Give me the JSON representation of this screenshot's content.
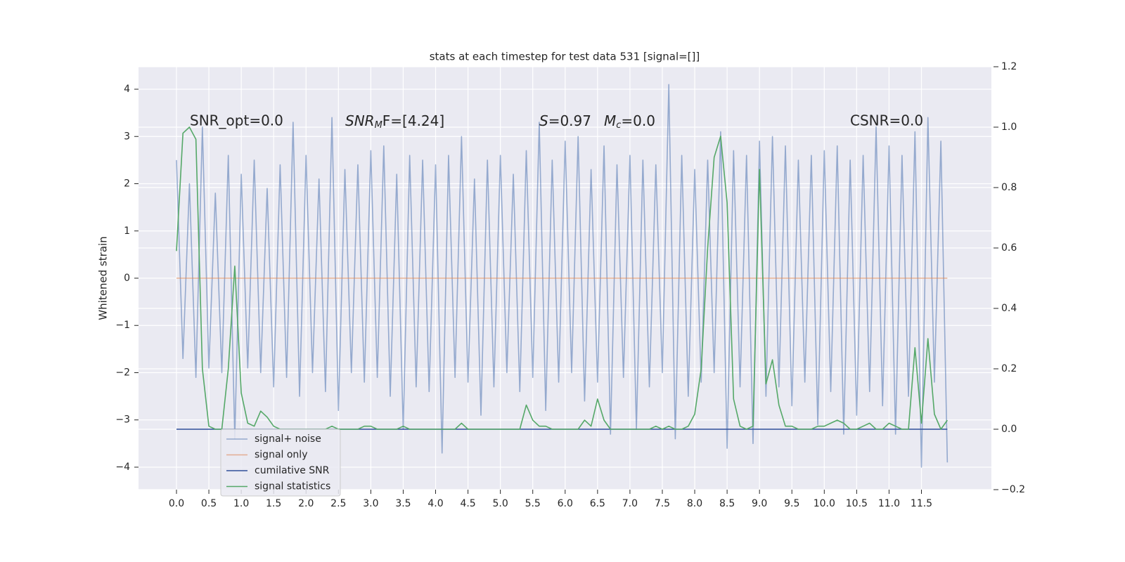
{
  "chart_data": {
    "type": "line",
    "title": "stats at each timestep for test data 531 [signal=[]]",
    "ylabel": "Whitened strain",
    "annotations": [
      "SNR_opt=0.0",
      [
        "SNR",
        "M",
        "F=[4.24]"
      ],
      [
        "S",
        "=0.97"
      ],
      [
        "M",
        "c",
        "=0.0"
      ],
      "CSNR=0.0"
    ],
    "x": [
      0,
      0.1,
      0.2,
      0.3,
      0.4,
      0.5,
      0.6,
      0.7,
      0.8,
      0.9,
      1,
      1.1,
      1.2,
      1.3,
      1.4,
      1.5,
      1.6,
      1.7,
      1.8,
      1.9,
      2,
      2.1,
      2.2,
      2.3,
      2.4,
      2.5,
      2.6,
      2.7,
      2.8,
      2.9,
      3,
      3.1,
      3.2,
      3.3,
      3.4,
      3.5,
      3.6,
      3.7,
      3.8,
      3.9,
      4,
      4.1,
      4.2,
      4.3,
      4.4,
      4.5,
      4.6,
      4.7,
      4.8,
      4.9,
      5,
      5.1,
      5.2,
      5.3,
      5.4,
      5.5,
      5.6,
      5.7,
      5.8,
      5.9,
      6,
      6.1,
      6.2,
      6.3,
      6.4,
      6.5,
      6.6,
      6.7,
      6.8,
      6.9,
      7,
      7.1,
      7.2,
      7.3,
      7.4,
      7.5,
      7.6,
      7.7,
      7.8,
      7.9,
      8,
      8.1,
      8.2,
      8.3,
      8.4,
      8.5,
      8.6,
      8.7,
      8.8,
      8.9,
      9,
      9.1,
      9.2,
      9.3,
      9.4,
      9.5,
      9.6,
      9.7,
      9.8,
      9.9,
      10,
      10.1,
      10.2,
      10.3,
      10.4,
      10.5,
      10.6,
      10.7,
      10.8,
      10.9,
      11,
      11.1,
      11.2,
      11.3,
      11.4,
      11.5,
      11.6,
      11.7,
      11.8,
      11.9
    ],
    "series": [
      {
        "name": "signal+ noise",
        "color": "#4c72b0",
        "opacity": 0.55,
        "values": [
          2.5,
          -1.7,
          2.0,
          -2.1,
          3.2,
          -1.9,
          1.8,
          -2.0,
          2.6,
          -3.4,
          2.2,
          -1.9,
          2.5,
          -2.0,
          1.9,
          -2.3,
          2.4,
          -2.1,
          3.3,
          -2.5,
          2.6,
          -2.0,
          2.1,
          -2.4,
          3.4,
          -2.8,
          2.3,
          -2.0,
          2.4,
          -2.2,
          2.7,
          -2.1,
          2.8,
          -2.5,
          2.2,
          -3.2,
          2.6,
          -2.3,
          2.5,
          -2.4,
          2.4,
          -3.7,
          2.6,
          -2.1,
          3.0,
          -2.2,
          2.1,
          -2.9,
          2.5,
          -2.3,
          2.6,
          -2.0,
          2.2,
          -2.4,
          2.7,
          -2.1,
          3.3,
          -2.8,
          2.5,
          -2.2,
          2.9,
          -2.0,
          3.0,
          -2.6,
          2.3,
          -2.2,
          2.8,
          -3.3,
          2.4,
          -2.1,
          2.6,
          -3.2,
          2.5,
          -2.3,
          2.4,
          -2.0,
          4.1,
          -3.4,
          2.6,
          -2.5,
          2.3,
          -2.2,
          2.5,
          -2.0,
          3.1,
          -3.6,
          2.7,
          -2.3,
          2.6,
          -3.5,
          2.9,
          -2.5,
          3.0,
          -2.3,
          2.8,
          -2.7,
          2.5,
          -2.2,
          2.6,
          -3.1,
          2.7,
          -2.4,
          2.8,
          -3.3,
          2.5,
          -2.9,
          2.6,
          -2.4,
          3.2,
          -2.7,
          2.8,
          -3.3,
          2.6,
          -2.5,
          3.1,
          -4.0,
          3.4,
          -2.2,
          2.9,
          -3.9
        ]
      },
      {
        "name": "signal only",
        "color": "#dd8452",
        "opacity": 0.6,
        "x": [
          0,
          11.9
        ],
        "values": [
          0,
          0
        ]
      },
      {
        "name": "cumilative SNR",
        "color": "#2f4f9a",
        "opacity": 1,
        "x": [
          0,
          11.9
        ],
        "values": [
          0,
          0
        ],
        "axis": "y2"
      },
      {
        "name": "signal statistics",
        "color": "#55a868",
        "opacity": 1,
        "axis": "y2",
        "values": [
          0.59,
          0.98,
          1.0,
          0.96,
          0.2,
          0.01,
          0.0,
          0.0,
          0.2,
          0.54,
          0.12,
          0.02,
          0.01,
          0.06,
          0.04,
          0.01,
          0.0,
          0.0,
          0.0,
          0.0,
          0.0,
          0.0,
          0.0,
          0.0,
          0.01,
          0.0,
          0.0,
          0.0,
          0.0,
          0.01,
          0.01,
          0.0,
          0.0,
          0.0,
          0.0,
          0.01,
          0.0,
          0.0,
          0.0,
          0.0,
          0.0,
          0.0,
          0.0,
          0.0,
          0.02,
          0.0,
          0.0,
          0.0,
          0.0,
          0.0,
          0.0,
          0.0,
          0.0,
          0.0,
          0.08,
          0.03,
          0.01,
          0.01,
          0.0,
          0.0,
          0.0,
          0.0,
          0.0,
          0.03,
          0.01,
          0.1,
          0.03,
          0.0,
          0.0,
          0.0,
          0.0,
          0.0,
          0.0,
          0.0,
          0.01,
          0.0,
          0.01,
          0.0,
          0.0,
          0.01,
          0.05,
          0.2,
          0.6,
          0.9,
          0.97,
          0.75,
          0.1,
          0.01,
          0.0,
          0.01,
          0.86,
          0.15,
          0.23,
          0.08,
          0.01,
          0.01,
          0.0,
          0.0,
          0.0,
          0.01,
          0.01,
          0.02,
          0.03,
          0.02,
          0.0,
          0.0,
          0.01,
          0.02,
          0.0,
          0.0,
          0.02,
          0.01,
          0.0,
          0.0,
          0.27,
          0.02,
          0.3,
          0.05,
          0.0,
          0.03
        ]
      }
    ],
    "xlim": [
      -0.586,
      12.58
    ],
    "xticks": [
      {
        "value": 0,
        "label": "0.0"
      },
      0.5,
      {
        "value": 1,
        "label": "1.0"
      },
      1.5,
      {
        "value": 2,
        "label": "2.0"
      },
      2.5,
      {
        "value": 3,
        "label": "3.0"
      },
      3.5,
      {
        "value": 4,
        "label": "4.0"
      },
      4.5,
      {
        "value": 5,
        "label": "5.0"
      },
      5.5,
      {
        "value": 6,
        "label": "6.0"
      },
      6.5,
      {
        "value": 7,
        "label": "7.0"
      },
      7.5,
      {
        "value": 8,
        "label": "8.0"
      },
      8.5,
      {
        "value": 9,
        "label": "9.0"
      },
      9.5,
      {
        "value": 10,
        "label": "10.0"
      },
      10.5,
      {
        "value": 11,
        "label": "11.0"
      },
      11.5
    ],
    "ylim": [
      -4.476,
      4.476
    ],
    "yticks": [
      {
        "value": -4,
        "label": "−4"
      },
      {
        "value": -3,
        "label": "−3"
      },
      {
        "value": -2,
        "label": "−2"
      },
      {
        "value": -1,
        "label": "−1"
      },
      0,
      1,
      2,
      3,
      4
    ],
    "y2lim": [
      -0.2,
      1.2
    ],
    "y2ticks": [
      {
        "value": -0.2,
        "label": "−0.2"
      },
      {
        "value": 0,
        "label": "0.0"
      },
      0.2,
      0.4,
      0.6,
      0.8,
      {
        "value": 1,
        "label": "1.0"
      },
      1.2
    ],
    "grid": true,
    "legend": "lower left"
  }
}
